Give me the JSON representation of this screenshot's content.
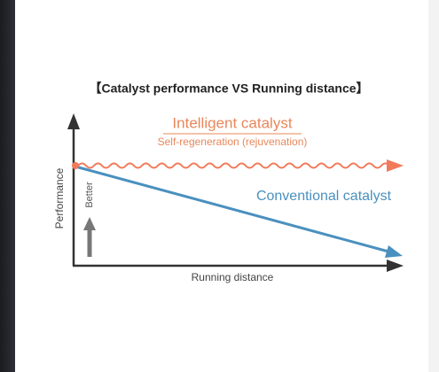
{
  "title": "【Catalyst performance VS Running distance】",
  "intelligent": {
    "label": "Intelligent catalyst",
    "sublabel": "Self-regeneration (rejuvenation)"
  },
  "conventional": {
    "label": "Conventional catalyst"
  },
  "axes": {
    "y_label": "Performance",
    "x_label": "Running distance",
    "better_label": "Better"
  }
}
